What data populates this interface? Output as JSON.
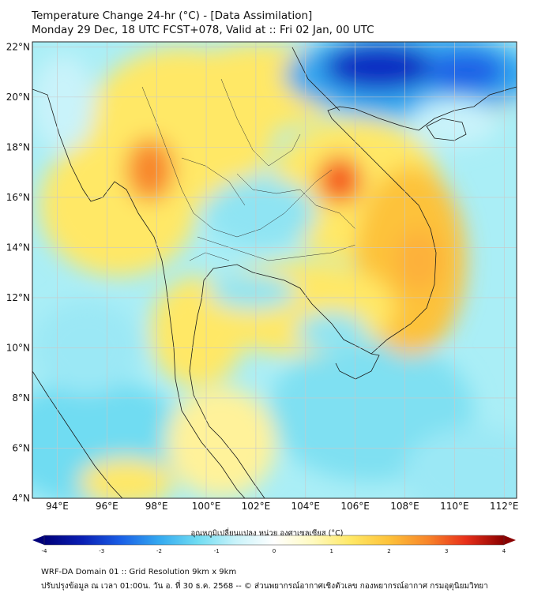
{
  "title": {
    "line1": "Temperature Change 24-hr (°C) - [Data Assimilation]",
    "line2": "Monday 29 Dec, 18 UTC FCST+078, Valid at :: Fri 02 Jan, 00 UTC"
  },
  "map": {
    "lat_labels": [
      "22°N",
      "20°N",
      "18°N",
      "16°N",
      "14°N",
      "12°N",
      "10°N",
      "8°N",
      "6°N",
      "4°N"
    ],
    "lat_values": [
      22,
      20,
      18,
      16,
      14,
      12,
      10,
      8,
      6,
      4
    ],
    "lon_labels": [
      "94°E",
      "96°E",
      "98°E",
      "100°E",
      "102°E",
      "104°E",
      "106°E",
      "108°E",
      "110°E",
      "112°E"
    ],
    "lon_values": [
      94,
      96,
      98,
      100,
      102,
      104,
      106,
      108,
      110,
      112
    ],
    "lon_range": [
      93,
      112.5
    ],
    "lat_range": [
      4,
      22.2
    ],
    "ocean_color": "#7fe0f2",
    "warm_color": "#ffe866",
    "hot_color": "#f55a1a",
    "cold_color": "#0a2bc2"
  },
  "colorbar": {
    "title": "อุณหภูมิเปลี่ยนแปลง หน่วย องศาเซลเซียส (°C)",
    "tick_labels": [
      "-4",
      "-3",
      "-2",
      "-1",
      "0",
      "1",
      "2",
      "3",
      "4"
    ],
    "tick_values": [
      -4,
      -3,
      -2,
      -1,
      0,
      1,
      2,
      3,
      4
    ],
    "colors": [
      "#00007a",
      "#0a1fb4",
      "#1a5fe6",
      "#34a9f0",
      "#6fdcf2",
      "#c9f3fa",
      "#ffffff",
      "#fffac0",
      "#ffe866",
      "#fdc23a",
      "#f8862a",
      "#e8301a",
      "#8a0000"
    ]
  },
  "footer": {
    "line1": "WRF-DA Domain 01 :: Grid Resolution 9km x 9km",
    "line2": "ปรับปรุงข้อมูล ณ เวลา 01:00น. วัน อ. ที่ 30 ธ.ค. 2568 -- © ส่วนพยากรณ์อากาศเชิงตัวเลข กองพยากรณ์อากาศ กรมอุตุนิยมวิทยา"
  }
}
